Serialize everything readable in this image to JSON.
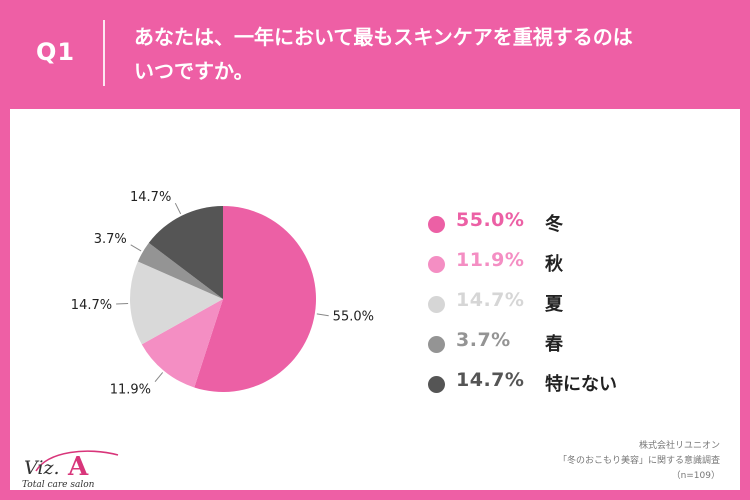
{
  "header": {
    "qnum": "Q1",
    "title_line1": "あなたは、一年において最もスキンケアを重視するのは",
    "title_line2": "いつですか。"
  },
  "chart_data": {
    "type": "pie",
    "start_angle": "12 o'clock, clockwise",
    "labels": [
      "冬",
      "秋",
      "夏",
      "春",
      "特にない"
    ],
    "values": [
      55.0,
      11.9,
      14.7,
      3.7,
      14.7
    ],
    "value_labels": [
      "55.0%",
      "11.9%",
      "14.7%",
      "3.7%",
      "14.7%"
    ],
    "colors": [
      "#ec60a5",
      "#f48ec3",
      "#d9d9d9",
      "#949494",
      "#555555"
    ],
    "legend_colors": [
      "#ec60a5",
      "#f48ec3",
      "#d6d6d6",
      "#949494",
      "#555555"
    ],
    "legend_placement": "right"
  },
  "legend": {
    "items": [
      {
        "pct": "55.0%",
        "label": "冬"
      },
      {
        "pct": "11.9%",
        "label": "秋"
      },
      {
        "pct": "14.7%",
        "label": "夏"
      },
      {
        "pct": "3.7%",
        "label": "春"
      },
      {
        "pct": "14.7%",
        "label": "特にない"
      }
    ]
  },
  "source": {
    "line1": "株式会社リユニオン",
    "line2": "「冬のおこもり美容」に関する意識調査",
    "line3": "（n=109）"
  },
  "logo": {
    "brand": "Viz.A",
    "tagline": "Total care salon"
  }
}
